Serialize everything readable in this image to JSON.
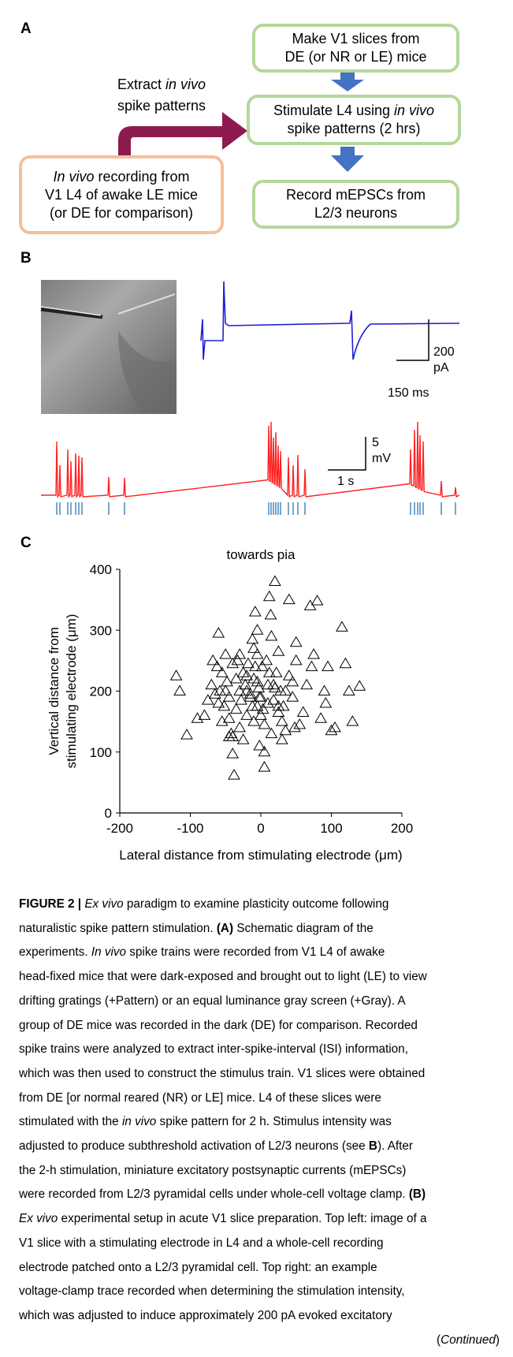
{
  "panel_a": {
    "label": "A",
    "steps": [
      {
        "lines": [
          "Make V1 slices from",
          "DE (or NR or LE) mice"
        ]
      },
      {
        "lines": [
          [
            "Stimulate L4 using ",
            "in vivo"
          ],
          "spike patterns (2 hrs)"
        ]
      },
      {
        "lines": [
          "Record mEPSCs from",
          "L2/3 neurons"
        ]
      }
    ],
    "recording": {
      "lines": [
        [
          "In vivo",
          " recording from"
        ],
        "V1 L4 of awake LE mice",
        "(or DE for comparison)"
      ]
    },
    "arrow_label": {
      "lines": [
        [
          "Extract ",
          "in vivo"
        ],
        "spike patterns"
      ]
    }
  },
  "panel_b": {
    "label": "B",
    "current_scale": [
      "200",
      "pA"
    ],
    "current_time_scale": "150 ms",
    "voltage_scale": [
      "5",
      "mV"
    ],
    "voltage_time_scale": "1 s"
  },
  "panel_c_label": "C",
  "chart_data": {
    "type": "scatter",
    "title": "towards pia",
    "xlabel": "Lateral distance from stimulating electrode (μm)",
    "ylabel": [
      "Vertical distance from",
      "stimulating electrode (μm)"
    ],
    "marker": "triangle-open",
    "color": "#000000",
    "xlim": [
      -200,
      200
    ],
    "xticks": [
      -200,
      -100,
      0,
      100,
      200
    ],
    "ylim": [
      0,
      400
    ],
    "yticks": [
      0,
      100,
      200,
      300,
      400
    ],
    "x": [
      -120,
      -115,
      -105,
      -90,
      -80,
      -75,
      -70,
      -68,
      -60,
      -62,
      -58,
      -55,
      -52,
      -50,
      -48,
      -45,
      -45,
      -42,
      -40,
      -40,
      -38,
      -35,
      -33,
      -30,
      -30,
      -28,
      -25,
      -22,
      -20,
      -18,
      -15,
      -12,
      -12,
      -10,
      -10,
      -8,
      -5,
      -5,
      -3,
      -2,
      0,
      2,
      3,
      5,
      5,
      8,
      10,
      12,
      14,
      15,
      18,
      20,
      22,
      25,
      25,
      28,
      30,
      32,
      35,
      40,
      40,
      45,
      48,
      50,
      50,
      55,
      60,
      65,
      70,
      72,
      75,
      80,
      85,
      90,
      92,
      95,
      100,
      105,
      115,
      120,
      125,
      130,
      140,
      -20,
      -35,
      -50,
      -15,
      -5,
      10,
      20,
      -25,
      -45,
      0,
      -60,
      -30,
      -10,
      15,
      -65,
      -55,
      5,
      -5,
      25,
      35,
      -40,
      -20,
      30,
      -8,
      12,
      -2,
      18,
      45
    ],
    "values": [
      225,
      200,
      128,
      155,
      160,
      185,
      210,
      250,
      295,
      240,
      200,
      230,
      175,
      260,
      215,
      190,
      155,
      130,
      125,
      97,
      62,
      170,
      250,
      200,
      140,
      185,
      230,
      210,
      160,
      245,
      195,
      285,
      175,
      220,
      150,
      330,
      300,
      260,
      205,
      110,
      190,
      240,
      170,
      145,
      75,
      250,
      210,
      355,
      325,
      130,
      185,
      380,
      230,
      265,
      165,
      200,
      150,
      175,
      135,
      350,
      225,
      190,
      140,
      280,
      250,
      145,
      165,
      210,
      340,
      240,
      260,
      348,
      155,
      200,
      180,
      240,
      135,
      140,
      305,
      245,
      200,
      150,
      208,
      225,
      220,
      200,
      190,
      175,
      180,
      205,
      120,
      125,
      160,
      180,
      260,
      270,
      290,
      195,
      150,
      100,
      215,
      175,
      200,
      245,
      200,
      120,
      240,
      230,
      190,
      210,
      215
    ]
  },
  "caption": {
    "lines": [
      [
        "FIGURE 2 |",
        " Ex vivo",
        " paradigm to examine plasticity outcome following"
      ],
      [
        "naturalistic spike pattern stimulation. ",
        "(A)",
        " Schematic diagram of the"
      ],
      [
        "experiments. ",
        "In vivo",
        " spike trains were recorded from V1 L4 of awake"
      ],
      "head-fixed mice that were dark-exposed and brought out to light (LE) to view",
      "drifting gratings (+Pattern) or an equal luminance gray screen (+Gray). A",
      "group of DE mice was recorded in the dark (DE) for comparison. Recorded",
      "spike trains were analyzed to extract inter-spike-interval (ISI) information,",
      "which was then used to construct the stimulus train. V1 slices were obtained",
      "from DE [or normal reared (NR) or LE] mice. L4 of these slices were",
      [
        "stimulated with the ",
        "in vivo",
        " spike pattern for 2 h. Stimulus intensity was"
      ],
      [
        "adjusted to produce subthreshold activation of L2/3 neurons (see ",
        "B",
        "). After"
      ],
      "the 2-h stimulation, miniature excitatory postsynaptic currents (mEPSCs)",
      [
        "were recorded from L2/3 pyramidal cells under whole-cell voltage clamp. ",
        "(B)"
      ],
      [
        "Ex vivo",
        " experimental setup in acute V1 slice preparation. Top left: image of a"
      ],
      "V1 slice with a stimulating electrode in L4 and a whole-cell recording",
      "electrode patched onto a L2/3 pyramidal cell. Top right: an example",
      "voltage-clamp trace recorded when determining the stimulation intensity,",
      "which was adjusted to induce approximately 200 pA evoked excitatory",
      [
        "(",
        "Continued",
        ")"
      ]
    ]
  }
}
